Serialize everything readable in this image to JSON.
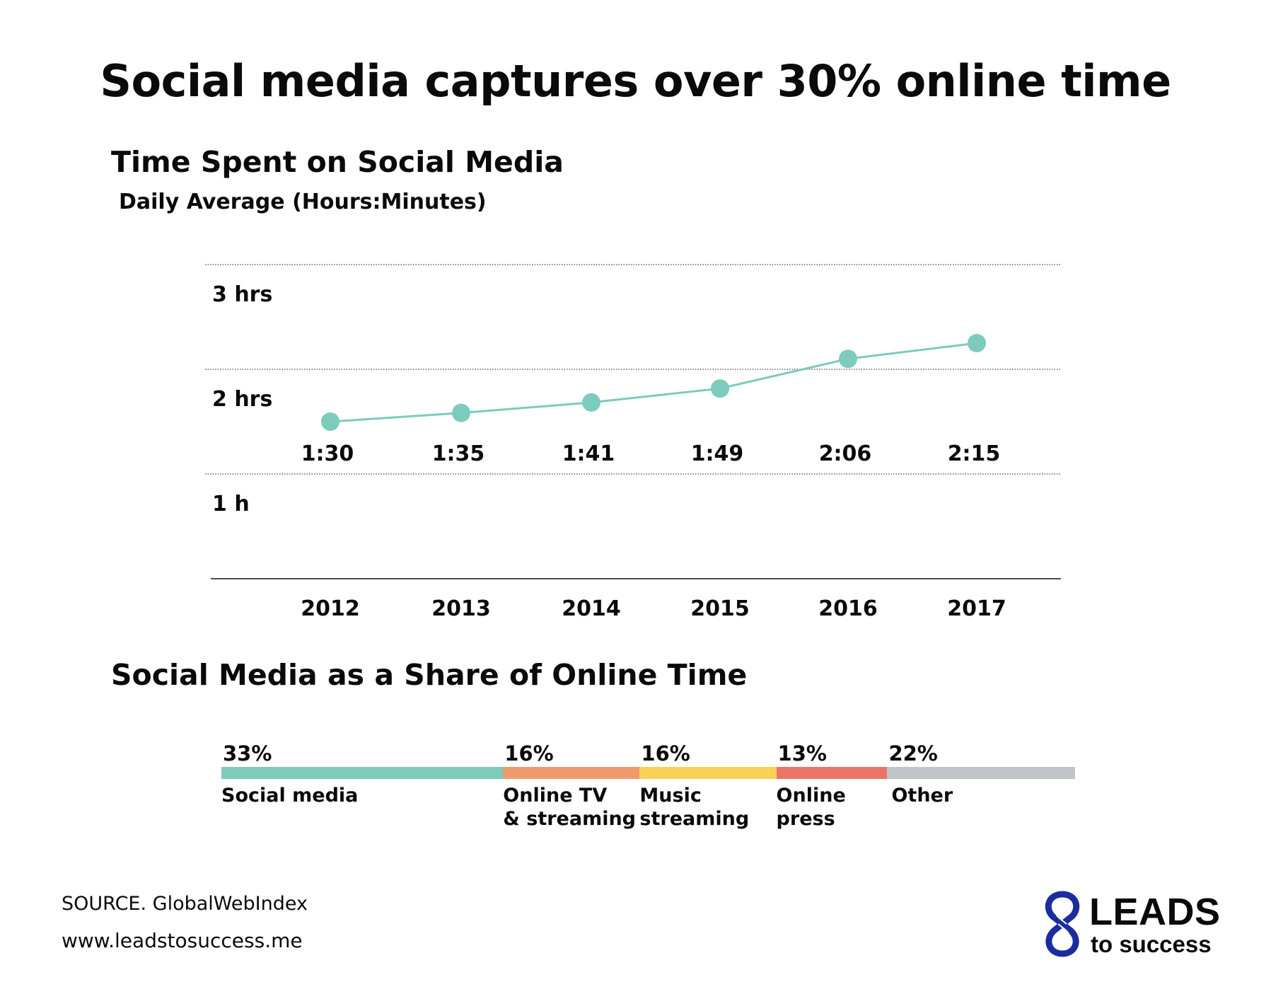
{
  "header": {
    "title": "Social media captures over 30% online time"
  },
  "chart_data": [
    {
      "type": "line",
      "title": "Time Spent on Social Media",
      "subtitle": "Daily Average (Hours:Minutes)",
      "x": [
        "2012",
        "2013",
        "2014",
        "2015",
        "2016",
        "2017"
      ],
      "series": [
        {
          "values": [
            90,
            95,
            101,
            109,
            126,
            135
          ],
          "labels": [
            "1:30",
            "1:35",
            "1:41",
            "1:49",
            "2:06",
            "2:15"
          ],
          "color": "#7dcbbd"
        }
      ],
      "y_unit": "minutes",
      "ylim": [
        0,
        180
      ],
      "y_ticks": [
        {
          "value": 60,
          "label": "1 h"
        },
        {
          "value": 120,
          "label": "2 hrs"
        },
        {
          "value": 180,
          "label": "3 hrs"
        }
      ],
      "grid": true
    },
    {
      "type": "bar",
      "orientation": "horizontal-stacked",
      "title": "Social Media as a Share of Online Time",
      "categories": [
        "Social media",
        "Online TV\n& streaming",
        "Music\nstreaming",
        "Online\npress",
        "Other"
      ],
      "values": [
        33,
        16,
        16,
        13,
        22
      ],
      "value_labels": [
        "33%",
        "16%",
        "16%",
        "13%",
        "22%"
      ],
      "colors": [
        "#7dcbbd",
        "#ef9a6a",
        "#f7d257",
        "#ec7467",
        "#c1c5cb"
      ]
    }
  ],
  "footer": {
    "source": "SOURCE. GlobalWebIndex",
    "website": "www.leadstosuccess.me"
  },
  "logo": {
    "line1": "LEADS",
    "line2": "to success",
    "icon": "infinity-s-logo-icon",
    "color": "#1b2d9c"
  }
}
